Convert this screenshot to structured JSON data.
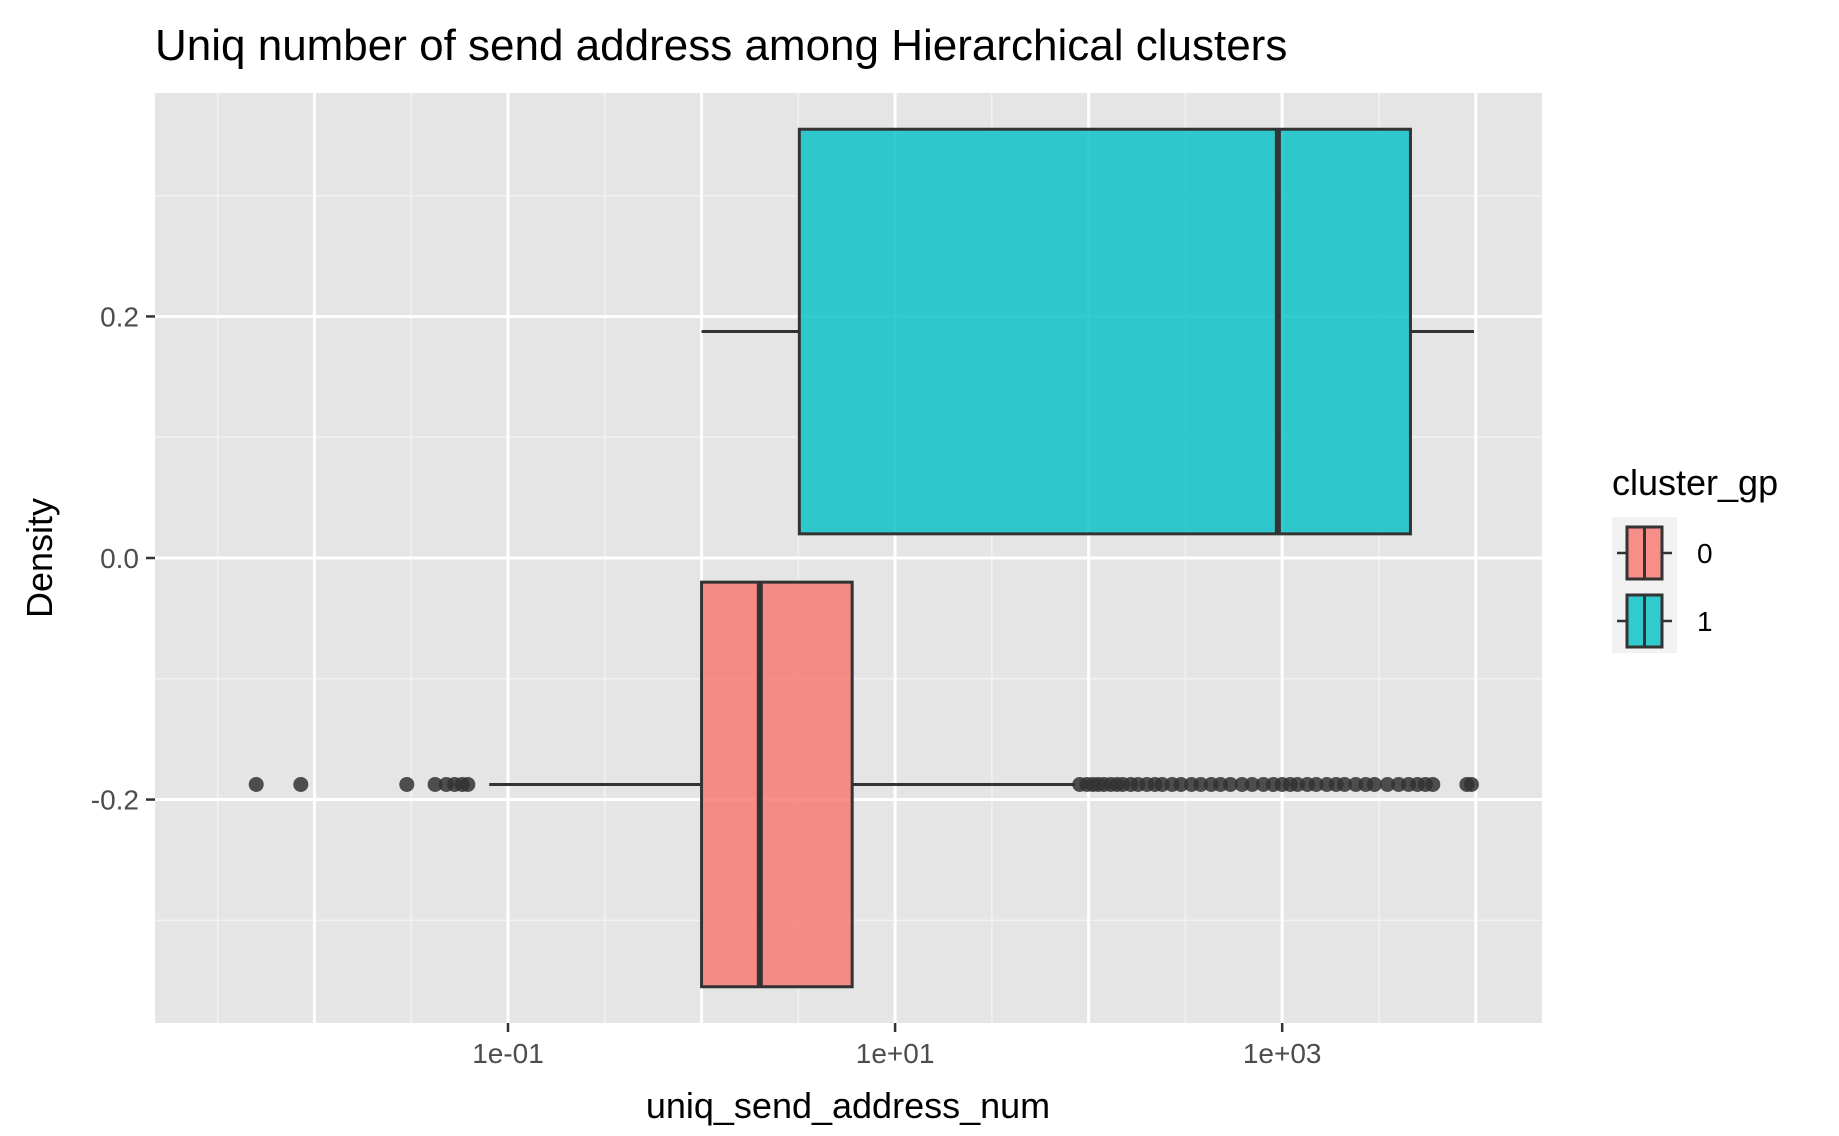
{
  "chart_data": {
    "type": "boxplot",
    "title": "Uniq number of send address among Hierarchical clusters",
    "xlabel": "uniq_send_address_num",
    "ylabel": "Density",
    "x_scale": "log10",
    "xlim": [
      0.0015,
      22000
    ],
    "ylim": [
      -0.385,
      0.385
    ],
    "x_ticks": [
      {
        "value": 0.1,
        "label": "1e-01"
      },
      {
        "value": 10,
        "label": "1e+01"
      },
      {
        "value": 1000,
        "label": "1e+03"
      }
    ],
    "y_ticks": [
      {
        "value": -0.2,
        "label": "-0.2"
      },
      {
        "value": 0.0,
        "label": "0.0"
      },
      {
        "value": 0.2,
        "label": "0.2"
      }
    ],
    "grid": true,
    "legend": {
      "title": "cluster_gp",
      "position": "right",
      "entries": [
        {
          "label": "0",
          "color": "#F8766D"
        },
        {
          "label": "1",
          "color": "#00BFC4"
        }
      ]
    },
    "series": [
      {
        "name": "0",
        "color": "#F8766D",
        "y_center": -0.1875,
        "y_range": [
          -0.355,
          -0.02
        ],
        "whisker_low": 0.08,
        "q1": 1,
        "median": 2,
        "q3": 6,
        "whisker_high": 85,
        "outliers": [
          0.005,
          0.0085,
          0.03,
          0.042,
          0.048,
          0.053,
          0.058,
          0.062,
          90,
          98,
          105,
          112,
          120,
          130,
          140,
          150,
          165,
          180,
          200,
          220,
          240,
          270,
          300,
          340,
          380,
          430,
          480,
          540,
          620,
          700,
          800,
          900,
          1000,
          1100,
          1200,
          1350,
          1500,
          1700,
          1900,
          2100,
          2400,
          2700,
          3000,
          3500,
          4000,
          4500,
          5000,
          5500,
          6000,
          9000,
          9500
        ]
      },
      {
        "name": "1",
        "color": "#00BFC4",
        "y_center": 0.1875,
        "y_range": [
          0.02,
          0.355
        ],
        "whisker_low": 1,
        "q1": 3.2,
        "median": 950,
        "q3": 4600,
        "whisker_high": 9800,
        "outliers": []
      }
    ]
  }
}
